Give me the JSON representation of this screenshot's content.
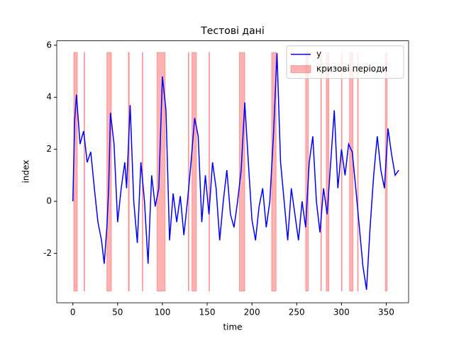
{
  "chart_data": {
    "type": "line",
    "title": "Тестові дані",
    "x_label": "time",
    "y_label": "index",
    "x": [
      0,
      2,
      4,
      8,
      12,
      16,
      20,
      24,
      28,
      32,
      35,
      38,
      40,
      42,
      46,
      50,
      54,
      58,
      60,
      64,
      68,
      72,
      76,
      80,
      84,
      88,
      92,
      96,
      100,
      104,
      108,
      112,
      116,
      120,
      124,
      128,
      132,
      136,
      140,
      144,
      148,
      152,
      156,
      160,
      164,
      168,
      172,
      176,
      180,
      184,
      188,
      192,
      196,
      200,
      204,
      208,
      212,
      216,
      220,
      224,
      228,
      232,
      236,
      240,
      244,
      248,
      252,
      256,
      260,
      264,
      268,
      272,
      276,
      280,
      284,
      288,
      292,
      296,
      300,
      304,
      308,
      312,
      316,
      320,
      324,
      328,
      332,
      336,
      340,
      344,
      348,
      352,
      356,
      360,
      364
    ],
    "series": [
      {
        "name": "у",
        "color": "#0000ff",
        "values": [
          0,
          3.1,
          4.1,
          2.2,
          2.7,
          1.5,
          1.9,
          0.5,
          -0.8,
          -1.5,
          -2.4,
          -1.0,
          0.5,
          3.4,
          2.2,
          -0.8,
          0.5,
          1.5,
          0.5,
          3.7,
          0,
          -1.6,
          1.5,
          0.0,
          -2.4,
          1.0,
          -0.2,
          0.5,
          4.8,
          3.5,
          -1.5,
          0.3,
          -0.8,
          0.2,
          -1.3,
          0.0,
          1.5,
          3.2,
          2.5,
          -0.8,
          1.0,
          -0.5,
          1.5,
          0.5,
          -1.5,
          0.0,
          1.2,
          -0.5,
          -1.0,
          0.0,
          1.2,
          3.8,
          1.5,
          -0.7,
          -1.5,
          -0.2,
          0.5,
          -1.0,
          0.0,
          2.5,
          5.7,
          1.5,
          0.0,
          -1.5,
          0.5,
          -0.5,
          -1.5,
          0.0,
          -1.0,
          1.5,
          2.5,
          0.0,
          -1.2,
          0.5,
          -0.5,
          1.5,
          3.5,
          0.5,
          2.0,
          1.0,
          2.2,
          1.9,
          0.5,
          -1.0,
          -2.5,
          -3.4,
          -1.0,
          1.0,
          2.5,
          1.2,
          0.5,
          2.8,
          1.8,
          1.0,
          1.2
        ]
      }
    ],
    "spans_name": "кризові періоди",
    "span_color": "#ff0000",
    "spans": [
      [
        1,
        5
      ],
      [
        12.5,
        13
      ],
      [
        38,
        43
      ],
      [
        62,
        63
      ],
      [
        77.5,
        78
      ],
      [
        94,
        103
      ],
      [
        129,
        129.5
      ],
      [
        133,
        138
      ],
      [
        152,
        152.5
      ],
      [
        186,
        192
      ],
      [
        222,
        227
      ],
      [
        260,
        263
      ],
      [
        277,
        277.5
      ],
      [
        283,
        286
      ],
      [
        300,
        300.5
      ],
      [
        309,
        313
      ],
      [
        318,
        318.5
      ],
      [
        349,
        351
      ]
    ],
    "span_y": [
      -3.45,
      5.72
    ],
    "xlim": [
      -18,
      375
    ],
    "ylim": [
      -3.9,
      6.17
    ],
    "xticks": [
      0,
      50,
      100,
      150,
      200,
      250,
      300,
      350
    ],
    "yticks": [
      -2,
      0,
      2,
      4,
      6
    ],
    "legend": "upper right"
  }
}
